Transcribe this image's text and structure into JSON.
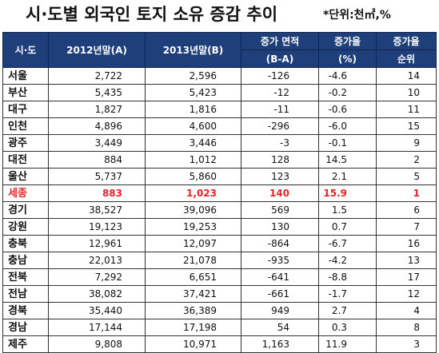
{
  "title": "시·도별 외국인 토지 소유 증감 추이",
  "unit": "*단위:천㎡,%",
  "header": {
    "region": "시·도",
    "y2012": "2012년말(A)",
    "y2013": "2013년말(B)",
    "diff_1": "증가 면적",
    "diff_2": "(B-A)",
    "rate_1": "증가율",
    "rate_2": "(%)",
    "rank_1": "증가율",
    "rank_2": "순위"
  },
  "rows": [
    {
      "region": "서울",
      "y2012": "2,722",
      "y2013": "2,596",
      "diff": "-126",
      "rate": "-4.6",
      "rank": "14"
    },
    {
      "region": "부산",
      "y2012": "5,435",
      "y2013": "5,423",
      "diff": "-12",
      "rate": "-0.2",
      "rank": "10"
    },
    {
      "region": "대구",
      "y2012": "1,827",
      "y2013": "1,816",
      "diff": "-11",
      "rate": "-0.6",
      "rank": "11"
    },
    {
      "region": "인천",
      "y2012": "4,896",
      "y2013": "4,600",
      "diff": "-296",
      "rate": "-6.0",
      "rank": "15"
    },
    {
      "region": "광주",
      "y2012": "3,449",
      "y2013": "3,446",
      "diff": "-3",
      "rate": "-0.1",
      "rank": "9"
    },
    {
      "region": "대전",
      "y2012": "884",
      "y2013": "1,012",
      "diff": "128",
      "rate": "14.5",
      "rank": "2"
    },
    {
      "region": "울산",
      "y2012": "5,737",
      "y2013": "5,860",
      "diff": "123",
      "rate": "2.1",
      "rank": "5"
    },
    {
      "region": "세종",
      "y2012": "883",
      "y2013": "1,023",
      "diff": "140",
      "rate": "15.9",
      "rank": "1",
      "highlight": true
    },
    {
      "region": "경기",
      "y2012": "38,527",
      "y2013": "39,096",
      "diff": "569",
      "rate": "1.5",
      "rank": "6"
    },
    {
      "region": "강원",
      "y2012": "19,123",
      "y2013": "19,253",
      "diff": "130",
      "rate": "0.7",
      "rank": "7"
    },
    {
      "region": "충북",
      "y2012": "12,961",
      "y2013": "12,097",
      "diff": "-864",
      "rate": "-6.7",
      "rank": "16"
    },
    {
      "region": "충남",
      "y2012": "22,013",
      "y2013": "21,078",
      "diff": "-935",
      "rate": "-4.2",
      "rank": "13"
    },
    {
      "region": "전북",
      "y2012": "7,292",
      "y2013": "6,651",
      "diff": "-641",
      "rate": "-8.8",
      "rank": "17"
    },
    {
      "region": "전남",
      "y2012": "38,082",
      "y2013": "37,421",
      "diff": "-661",
      "rate": "-1.7",
      "rank": "12"
    },
    {
      "region": "경북",
      "y2012": "35,440",
      "y2013": "36,389",
      "diff": "949",
      "rate": "2.7",
      "rank": "4"
    },
    {
      "region": "경남",
      "y2012": "17,144",
      "y2013": "17,198",
      "diff": "54",
      "rate": "0.3",
      "rank": "8"
    },
    {
      "region": "제주",
      "y2012": "9,808",
      "y2013": "10,971",
      "diff": "1,163",
      "rate": "11.9",
      "rank": "3"
    }
  ],
  "colors": {
    "header_bg": "#1f3f7a",
    "header_text": "#ffffff",
    "highlight": "#e3262b"
  }
}
